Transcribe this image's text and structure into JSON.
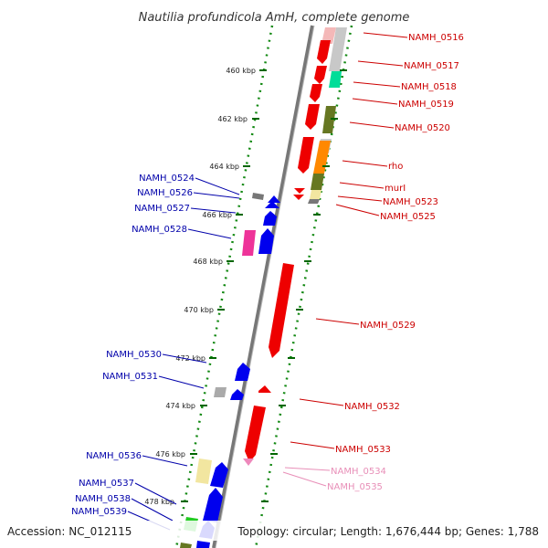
{
  "title": "Nautilia profundicola AmH, complete genome",
  "footer": {
    "accession": "Accession: NC_012115",
    "summary": "Topology: circular; Length: 1,676,444 bp; Genes: 1,788"
  },
  "colors": {
    "forward_label": "#cc0000",
    "reverse_label": "#0000aa",
    "rna_label": "#e88fb8",
    "backbone": "#777777",
    "tick": "#006600"
  },
  "ticks": [
    "460 kbp",
    "462 kbp",
    "464 kbp",
    "466 kbp",
    "468 kbp",
    "470 kbp",
    "472 kbp",
    "474 kbp",
    "476 kbp",
    "478 kbp"
  ],
  "right_labels": [
    "NAMH_0516",
    "NAMH_0517",
    "NAMH_0518",
    "NAMH_0519",
    "NAMH_0520",
    "rho",
    "murI",
    "NAMH_0523",
    "NAMH_0525",
    "NAMH_0529",
    "NAMH_0532",
    "NAMH_0533",
    "NAMH_0534",
    "NAMH_0535"
  ],
  "left_labels": [
    "NAMH_0524",
    "NAMH_0526",
    "NAMH_0527",
    "NAMH_0528",
    "NAMH_0530",
    "NAMH_0531",
    "NAMH_0536",
    "NAMH_0537",
    "NAMH_0538",
    "NAMH_0539"
  ]
}
